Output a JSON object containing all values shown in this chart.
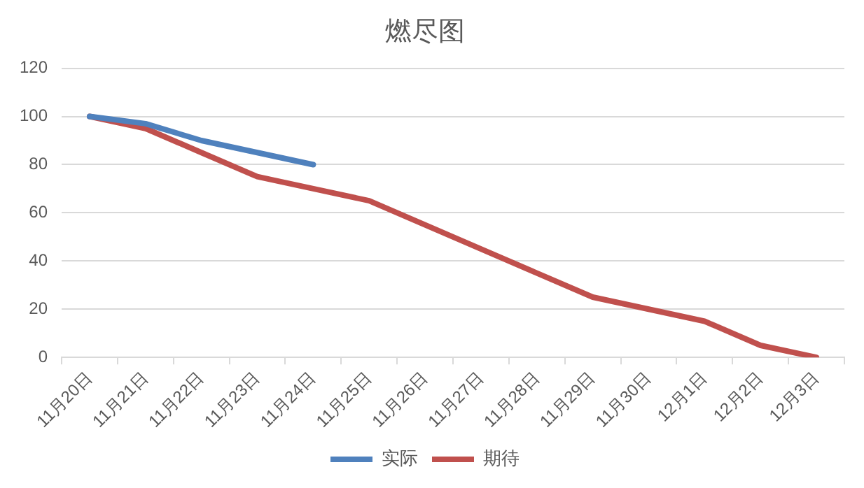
{
  "chart_data": {
    "type": "line",
    "title": "燃尽图",
    "categories": [
      "11月20日",
      "11月21日",
      "11月22日",
      "11月23日",
      "11月24日",
      "11月25日",
      "11月26日",
      "11月27日",
      "11月28日",
      "11月29日",
      "11月30日",
      "12月1日",
      "12月2日",
      "12月3日"
    ],
    "series": [
      {
        "name": "实际",
        "color": "#4f81bd",
        "values": [
          100,
          97,
          90,
          85,
          80,
          null,
          null,
          null,
          null,
          null,
          null,
          null,
          null,
          null
        ]
      },
      {
        "name": "期待",
        "color": "#c0504d",
        "values": [
          100,
          95,
          85,
          75,
          70,
          65,
          55,
          45,
          35,
          25,
          20,
          15,
          5,
          0
        ]
      }
    ],
    "ylim": [
      0,
      120
    ],
    "yticks": [
      0,
      20,
      40,
      60,
      80,
      100,
      120
    ],
    "grid": "y",
    "legend": "bottom",
    "marker": "none",
    "line_style": "solid"
  }
}
